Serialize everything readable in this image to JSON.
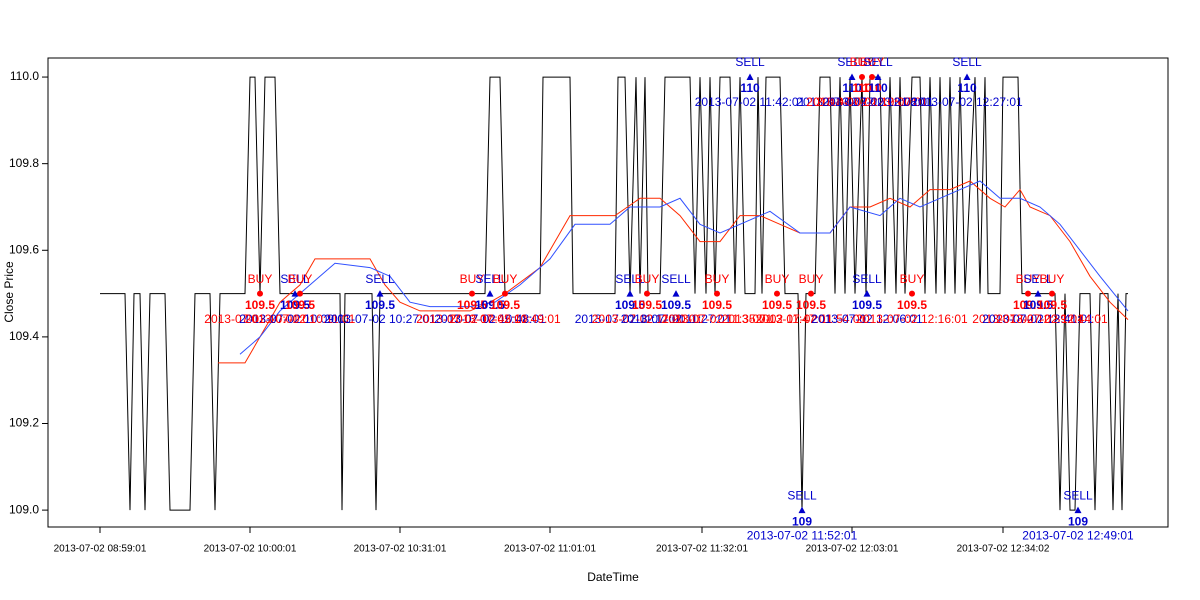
{
  "chart_data": {
    "type": "line",
    "xlabel": "DateTime",
    "ylabel": "Close Price",
    "xlim": [
      -52,
      1068
    ],
    "ylim": [
      108.961,
      110.044
    ],
    "xticks": [
      {
        "value": 0,
        "label": "2013-07-02 08:59:01"
      },
      {
        "value": 150,
        "label": "2013-07-02 10:00:01"
      },
      {
        "value": 300,
        "label": "2013-07-02 10:31:01"
      },
      {
        "value": 450,
        "label": "2013-07-02 11:01:01"
      },
      {
        "value": 602,
        "label": "2013-07-02 11:32:01"
      },
      {
        "value": 752,
        "label": "2013-07-02 12:03:01"
      },
      {
        "value": 903,
        "label": "2013-07-02 12:34:02"
      }
    ],
    "yticks": [
      {
        "value": 109.0,
        "label": "109.0"
      },
      {
        "value": 109.2,
        "label": "109.2"
      },
      {
        "value": 109.4,
        "label": "109.4"
      },
      {
        "value": 109.6,
        "label": "109.6"
      },
      {
        "value": 109.8,
        "label": "109.8"
      },
      {
        "value": 110.0,
        "label": "110.0"
      }
    ],
    "series": [
      {
        "color": "#000000",
        "x": [
          0,
          25,
          30,
          34,
          40,
          45,
          50,
          65,
          70,
          90,
          95,
          110,
          115,
          120,
          145,
          150,
          155,
          160,
          165,
          175,
          180,
          240,
          242,
          245,
          272,
          276,
          280,
          385,
          390,
          400,
          405,
          440,
          443,
          470,
          473,
          515,
          518,
          525,
          530,
          536,
          540,
          545,
          548,
          560,
          565,
          590,
          595,
          600,
          606,
          610,
          615,
          620,
          630,
          635,
          640,
          645,
          655,
          658,
          662,
          666,
          680,
          685,
          698,
          702,
          706,
          715,
          720,
          730,
          735,
          740,
          745,
          750,
          755,
          762,
          766,
          770,
          780,
          785,
          790,
          796,
          800,
          805,
          812,
          820,
          825,
          830,
          836,
          840,
          845,
          850,
          855,
          860,
          865,
          875,
          880,
          885,
          888,
          900,
          903,
          918,
          922,
          955,
          960,
          965,
          970,
          975,
          980,
          990,
          995,
          1000,
          1008,
          1013,
          1018,
          1022,
          1026,
          1028
        ],
        "values": [
          109.5,
          109.5,
          109.0,
          109.5,
          109.5,
          109.0,
          109.5,
          109.5,
          109.0,
          109.0,
          109.5,
          109.5,
          109.0,
          109.5,
          109.5,
          110,
          110,
          109.5,
          110,
          110,
          109.5,
          109.5,
          109.0,
          109.5,
          109.5,
          109.0,
          109.5,
          109.5,
          110,
          110,
          109.5,
          109.5,
          110,
          110,
          109.5,
          109.5,
          110,
          110,
          109.5,
          110,
          109.5,
          110,
          109.5,
          109.5,
          110,
          110,
          109.5,
          110,
          109.5,
          110,
          109.5,
          110,
          110,
          109.5,
          110,
          109.5,
          109.5,
          110,
          109.5,
          110,
          110,
          109.5,
          109.5,
          109.0,
          109.5,
          109.5,
          110,
          110,
          109.5,
          110,
          109.5,
          110,
          109.5,
          110,
          109.5,
          110,
          110,
          109.5,
          110,
          109.5,
          110,
          109.5,
          110,
          110,
          109.5,
          110,
          109.5,
          110,
          109.5,
          110,
          109.5,
          110,
          109.5,
          110,
          109.5,
          110,
          109.5,
          109.5,
          110,
          110,
          109.5,
          109.5,
          109.0,
          109.5,
          109.0,
          109.0,
          109.5,
          109.5,
          109.0,
          109.5,
          109.5,
          109.0,
          109.5,
          109.0,
          109.5,
          109.5
        ]
      },
      {
        "color": "#ff2a00",
        "x": [
          118,
          145,
          160,
          180,
          200,
          215,
          270,
          285,
          300,
          320,
          370,
          390,
          405,
          440,
          470,
          515,
          540,
          560,
          580,
          600,
          620,
          640,
          660,
          680,
          700,
          730,
          750,
          770,
          790,
          810,
          830,
          850,
          870,
          890,
          905,
          920,
          930,
          950,
          970,
          990,
          1010,
          1028
        ],
        "values": [
          109.34,
          109.34,
          109.4,
          109.48,
          109.52,
          109.58,
          109.58,
          109.52,
          109.48,
          109.46,
          109.46,
          109.48,
          109.5,
          109.56,
          109.68,
          109.68,
          109.72,
          109.72,
          109.68,
          109.62,
          109.62,
          109.68,
          109.68,
          109.66,
          109.64,
          109.64,
          109.7,
          109.7,
          109.72,
          109.7,
          109.74,
          109.74,
          109.76,
          109.72,
          109.7,
          109.74,
          109.7,
          109.68,
          109.62,
          109.54,
          109.48,
          109.44
        ]
      },
      {
        "color": "#3050ff",
        "x": [
          140,
          160,
          180,
          210,
          235,
          270,
          290,
          310,
          330,
          370,
          395,
          420,
          450,
          475,
          510,
          530,
          560,
          580,
          600,
          620,
          640,
          670,
          700,
          730,
          750,
          780,
          800,
          820,
          840,
          860,
          880,
          900,
          920,
          940,
          960,
          980,
          1000,
          1028
        ],
        "values": [
          109.36,
          109.4,
          109.46,
          109.52,
          109.57,
          109.56,
          109.54,
          109.48,
          109.47,
          109.47,
          109.48,
          109.52,
          109.58,
          109.66,
          109.66,
          109.7,
          109.7,
          109.72,
          109.66,
          109.64,
          109.66,
          109.69,
          109.64,
          109.64,
          109.7,
          109.68,
          109.72,
          109.7,
          109.72,
          109.74,
          109.76,
          109.72,
          109.72,
          109.7,
          109.66,
          109.6,
          109.54,
          109.46
        ]
      }
    ],
    "signals": [
      {
        "label": "BUY",
        "x": 160,
        "price": 109.5,
        "time": "2013-07-02 10:01:01",
        "marker": "circle",
        "color": "#ff0000"
      },
      {
        "label": "SELL",
        "x": 195,
        "price": 109.5,
        "time": "2013-07-02 10:09:01",
        "marker": "triangle",
        "color": "#0000cc"
      },
      {
        "label": "BUY",
        "x": 200,
        "price": 109.5,
        "time": "2013-07-02 10:11:01",
        "marker": "circle",
        "color": "#ff0000"
      },
      {
        "label": "SELL",
        "x": 280,
        "price": 109.5,
        "time": "2013-07-02 10:27:01",
        "marker": "triangle",
        "color": "#0000cc"
      },
      {
        "label": "BUY",
        "x": 372,
        "price": 109.5,
        "time": "2013-07-02 10:45:01",
        "marker": "circle",
        "color": "#ff0000"
      },
      {
        "label": "SELL",
        "x": 390,
        "price": 109.5,
        "time": "2013-07-02 10:48:01",
        "marker": "triangle",
        "color": "#0000cc"
      },
      {
        "label": "BUY",
        "x": 405,
        "price": 109.5,
        "time": "2013-07-02 10:49:01",
        "marker": "circle",
        "color": "#ff0000"
      },
      {
        "label": "SELL",
        "x": 530,
        "price": 109.5,
        "time": "2013-07-02 11:17:01",
        "marker": "triangle",
        "color": "#0000cc"
      },
      {
        "label": "BUY",
        "x": 547,
        "price": 109.5,
        "time": "2013-07-02 11:20:01",
        "marker": "circle",
        "color": "#ff0000"
      },
      {
        "label": "SELL",
        "x": 576,
        "price": 109.5,
        "time": "2013-07-02 11:27:01",
        "marker": "triangle",
        "color": "#0000cc"
      },
      {
        "label": "BUY",
        "x": 617,
        "price": 109.5,
        "time": "2013-07-02 11:35:01",
        "marker": "circle",
        "color": "#ff0000"
      },
      {
        "label": "SELL",
        "x": 650,
        "price": 110,
        "time": "2013-07-02 11:42:01",
        "marker": "triangle",
        "color": "#0000cc"
      },
      {
        "label": "BUY",
        "x": 677,
        "price": 109.5,
        "time": "2013-07-02 11:47:01",
        "marker": "circle",
        "color": "#ff0000"
      },
      {
        "label": "SELL",
        "x": 702,
        "price": 109,
        "time": "2013-07-02 11:52:01",
        "marker": "triangle",
        "color": "#0000cc"
      },
      {
        "label": "BUY",
        "x": 711,
        "price": 109.5,
        "time": "2013-07-02 11:54:01",
        "marker": "circle",
        "color": "#ff0000"
      },
      {
        "label": "SELL",
        "x": 752,
        "price": 110,
        "time": "2013-07-02 12:03:01",
        "marker": "triangle",
        "color": "#0000cc"
      },
      {
        "label": "BUY",
        "x": 762,
        "price": 110,
        "time": "2013-07-02 12:05:01",
        "marker": "circle",
        "color": "#ff0000"
      },
      {
        "label": "SELL",
        "x": 767,
        "price": 109.5,
        "time": "2013-07-02 12:06:01",
        "marker": "triangle",
        "color": "#0000cc"
      },
      {
        "label": "BUY",
        "x": 772,
        "price": 110,
        "time": "2013-07-02 12:07:01",
        "marker": "circle",
        "color": "#ff0000"
      },
      {
        "label": "SELL",
        "x": 778,
        "price": 110,
        "time": "2013-07-02 12:08:01",
        "marker": "triangle",
        "color": "#0000cc"
      },
      {
        "label": "BUY",
        "x": 812,
        "price": 109.5,
        "time": "2013-07-02 12:16:01",
        "marker": "circle",
        "color": "#ff0000"
      },
      {
        "label": "SELL",
        "x": 867,
        "price": 110,
        "time": "2013-07-02 12:27:01",
        "marker": "triangle",
        "color": "#0000cc"
      },
      {
        "label": "BUY",
        "x": 928,
        "price": 109.5,
        "time": "2013-07-02 12:39:01",
        "marker": "circle",
        "color": "#ff0000"
      },
      {
        "label": "SELL",
        "x": 938,
        "price": 109.5,
        "time": "2013-07-02 12:41:01",
        "marker": "triangle",
        "color": "#0000cc"
      },
      {
        "label": "BUY",
        "x": 952,
        "price": 109.5,
        "time": "2013-07-02 12:44:01",
        "marker": "circle",
        "color": "#ff0000"
      },
      {
        "label": "SELL",
        "x": 978,
        "price": 109,
        "time": "2013-07-02 12:49:01",
        "marker": "triangle",
        "color": "#0000cc"
      }
    ]
  }
}
